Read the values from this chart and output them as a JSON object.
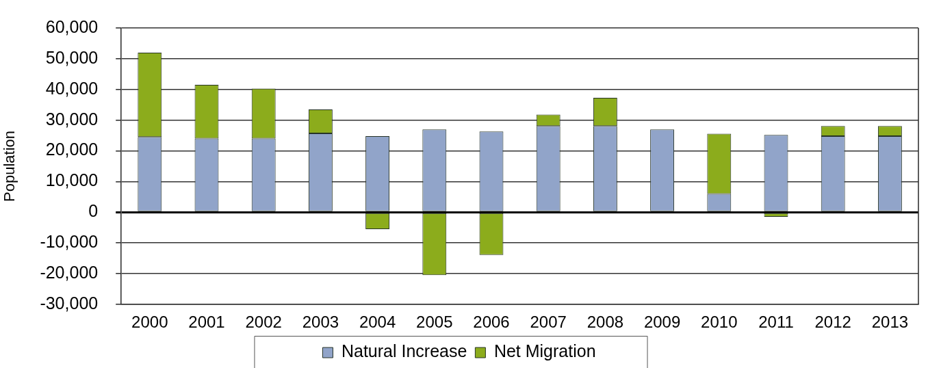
{
  "chart_data": {
    "type": "bar",
    "stacked": true,
    "categories": [
      "2000",
      "2001",
      "2002",
      "2003",
      "2004",
      "2005",
      "2006",
      "2007",
      "2008",
      "2009",
      "2010",
      "2011",
      "2012",
      "2013"
    ],
    "series": [
      {
        "name": "Natural Increase",
        "color": "#91a4c9",
        "values": [
          24500,
          24000,
          24000,
          25700,
          24800,
          27000,
          26300,
          28100,
          28100,
          27000,
          6000,
          25200,
          24800,
          24800
        ]
      },
      {
        "name": "Net Migration",
        "color": "#8cac1c",
        "values": [
          27500,
          17500,
          16300,
          7800,
          -5500,
          -20500,
          -13900,
          3700,
          9200,
          -300,
          19600,
          -1500,
          3300,
          3300
        ]
      }
    ],
    "ylabel": "Population",
    "ylim": [
      -30000,
      60000
    ],
    "yticks": [
      {
        "value": -30000,
        "label": "-30,000"
      },
      {
        "value": -20000,
        "label": "-20,000"
      },
      {
        "value": -10000,
        "label": "-10,000"
      },
      0,
      {
        "value": 10000,
        "label": "10,000"
      },
      {
        "value": 20000,
        "label": "20,000"
      },
      {
        "value": 30000,
        "label": "30,000"
      },
      {
        "value": 40000,
        "label": "40,000"
      },
      {
        "value": 50000,
        "label": "50,000"
      },
      {
        "value": 60000,
        "label": "60,000"
      }
    ],
    "grid": "y",
    "legend": "bottom"
  }
}
